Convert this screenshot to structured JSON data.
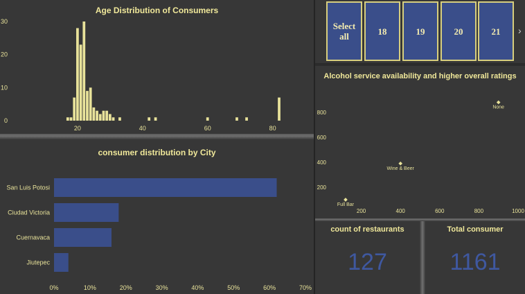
{
  "age_chart": {
    "title": "Age Distribution of Consumers",
    "chart_data": {
      "type": "bar",
      "title": "Age Distribution of Consumers",
      "xlim": [
        0,
        82
      ],
      "ylim": [
        0,
        30
      ],
      "x_ticks": [
        20,
        40,
        60,
        80
      ],
      "y_ticks": [
        0,
        10,
        20,
        30
      ],
      "bar_color": "#e8e29a",
      "ages": [
        17,
        18,
        19,
        20,
        21,
        22,
        23,
        24,
        25,
        26,
        27,
        28,
        29,
        30,
        31,
        33,
        42,
        44,
        60,
        69,
        72,
        82
      ],
      "counts": [
        1,
        1,
        7,
        28,
        23,
        30,
        9,
        10,
        4,
        3,
        2,
        3,
        3,
        2,
        1,
        1,
        1,
        1,
        1,
        1,
        1,
        7
      ]
    }
  },
  "city_chart": {
    "title": "consumer distribution by City",
    "chart_data": {
      "type": "bar",
      "orientation": "horizontal",
      "title": "consumer distribution by City",
      "categories": [
        "San Luis Potosi",
        "Ciudad Victoria",
        "Cuernavaca",
        "Jiutepec"
      ],
      "values": [
        62,
        18,
        16,
        4
      ],
      "xlim": [
        0,
        70
      ],
      "x_ticks": [
        "0%",
        "10%",
        "20%",
        "30%",
        "40%",
        "50%",
        "60%",
        "70%"
      ],
      "bar_color": "#3a4e8a"
    }
  },
  "slicer": {
    "items": [
      "Select all",
      "18",
      "19",
      "20",
      "21"
    ],
    "next_icon": "chevron-right-icon"
  },
  "alcohol_chart": {
    "title": "Alcohol service availability and higher overall ratings",
    "chart_data": {
      "type": "scatter",
      "title": "Alcohol service availability and higher overall ratings",
      "xlim": [
        0,
        1000
      ],
      "ylim": [
        0,
        950
      ],
      "x_ticks": [
        200,
        400,
        600,
        800,
        1000
      ],
      "y_ticks": [
        200,
        400,
        600,
        800
      ],
      "points": [
        {
          "label": "Full Bar",
          "x": 120,
          "y": 100
        },
        {
          "label": "Wine & Beer",
          "x": 400,
          "y": 390
        },
        {
          "label": "None",
          "x": 900,
          "y": 880
        }
      ],
      "point_color": "#e8e29a"
    }
  },
  "cards": {
    "restaurants": {
      "title": "count of restaurants",
      "value": "127"
    },
    "consumers": {
      "title": "Total consumer",
      "value": "1161"
    }
  }
}
